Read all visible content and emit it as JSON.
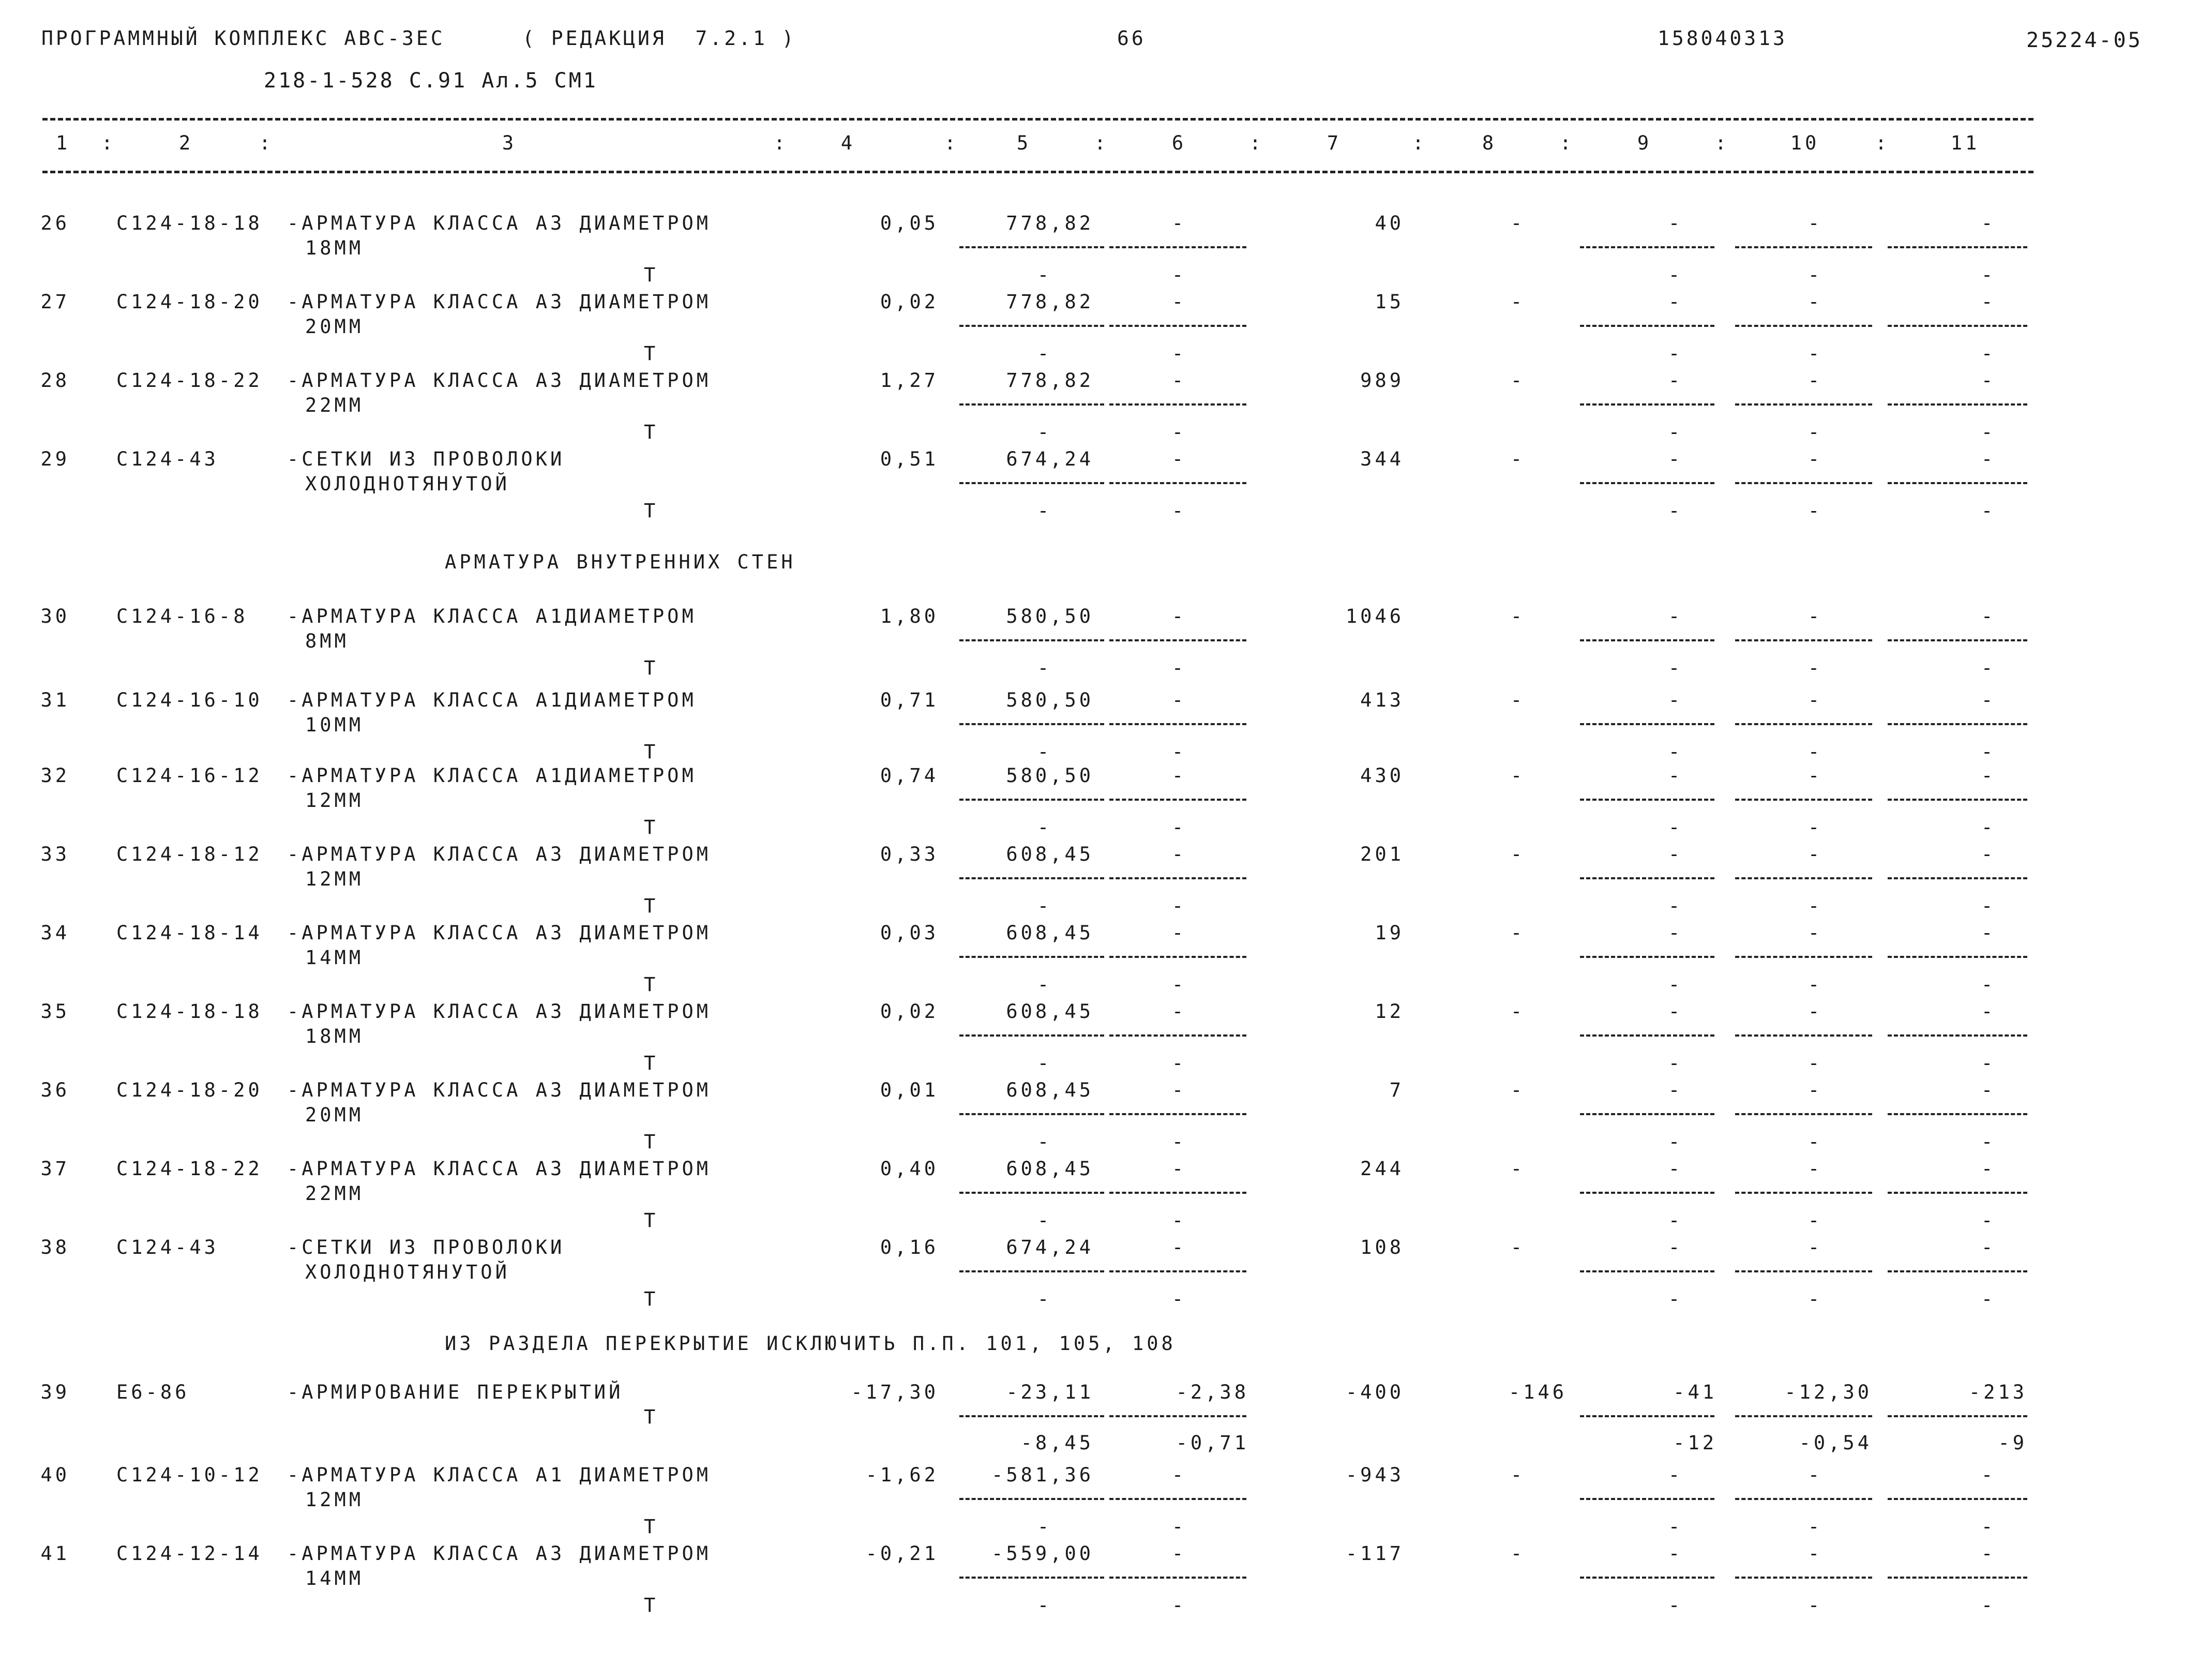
{
  "header": {
    "program": "ПРОГРАММНЫЙ КОМПЛЕКС АВС-3ЕС",
    "edition": "( РЕДАКЦИЯ  7.2.1 )",
    "page": "66",
    "number": "158040313",
    "sheet_code": "25224-05",
    "subtitle": "218-1-528 С.91 Ал.5 СМ1"
  },
  "columns": [
    "1",
    "2",
    "3",
    "4",
    "5",
    "6",
    "7",
    "8",
    "9",
    "10",
    "11"
  ],
  "col_separator": ":",
  "unit_mark": "T",
  "dash": "-",
  "sections": {
    "inner_walls": "АРМАТУРА ВНУТРЕННИХ СТЕН",
    "exclude": "ИЗ РАЗДЕЛА ПЕРЕКРЫТИЕ ИСКЛЮЧИТЬ П.П. 101, 105, 108"
  },
  "rows": [
    {
      "n": "26",
      "code": "С124-18-18",
      "name1": "-АРМАТУРА КЛАССА А3 ДИАМЕТРОМ",
      "name2": "18ММ",
      "c4": "0,05",
      "c5": "778,82",
      "c6": "-",
      "c7": "40",
      "c8": "-",
      "c9": "-",
      "c10": "-",
      "c11": "-"
    },
    {
      "n": "27",
      "code": "С124-18-20",
      "name1": "-АРМАТУРА КЛАССА А3 ДИАМЕТРОМ",
      "name2": "20ММ",
      "c4": "0,02",
      "c5": "778,82",
      "c6": "-",
      "c7": "15",
      "c8": "-",
      "c9": "-",
      "c10": "-",
      "c11": "-"
    },
    {
      "n": "28",
      "code": "С124-18-22",
      "name1": "-АРМАТУРА КЛАССА А3 ДИАМЕТРОМ",
      "name2": "22ММ",
      "c4": "1,27",
      "c5": "778,82",
      "c6": "-",
      "c7": "989",
      "c8": "-",
      "c9": "-",
      "c10": "-",
      "c11": "-"
    },
    {
      "n": "29",
      "code": "С124-43",
      "name1": "-СЕТКИ ИЗ ПРОВОЛОКИ",
      "name2": "ХОЛОДНОТЯНУТОЙ",
      "c4": "0,51",
      "c5": "674,24",
      "c6": "-",
      "c7": "344",
      "c8": "-",
      "c9": "-",
      "c10": "-",
      "c11": "-"
    },
    {
      "n": "30",
      "code": "С124-16-8",
      "name1": "-АРМАТУРА КЛАССА А1ДИАМЕТРОМ",
      "name2": "8ММ",
      "c4": "1,80",
      "c5": "580,50",
      "c6": "-",
      "c7": "1046",
      "c8": "-",
      "c9": "-",
      "c10": "-",
      "c11": "-"
    },
    {
      "n": "31",
      "code": "С124-16-10",
      "name1": "-АРМАТУРА КЛАССА А1ДИАМЕТРОМ",
      "name2": "10ММ",
      "c4": "0,71",
      "c5": "580,50",
      "c6": "-",
      "c7": "413",
      "c8": "-",
      "c9": "-",
      "c10": "-",
      "c11": "-"
    },
    {
      "n": "32",
      "code": "С124-16-12",
      "name1": "-АРМАТУРА КЛАССА А1ДИАМЕТРОМ",
      "name2": "12ММ",
      "c4": "0,74",
      "c5": "580,50",
      "c6": "-",
      "c7": "430",
      "c8": "-",
      "c9": "-",
      "c10": "-",
      "c11": "-"
    },
    {
      "n": "33",
      "code": "С124-18-12",
      "name1": "-АРМАТУРА КЛАССА А3 ДИАМЕТРОМ",
      "name2": "12ММ",
      "c4": "0,33",
      "c5": "608,45",
      "c6": "-",
      "c7": "201",
      "c8": "-",
      "c9": "-",
      "c10": "-",
      "c11": "-"
    },
    {
      "n": "34",
      "code": "С124-18-14",
      "name1": "-АРМАТУРА КЛАССА А3 ДИАМЕТРОМ",
      "name2": "14ММ",
      "c4": "0,03",
      "c5": "608,45",
      "c6": "-",
      "c7": "19",
      "c8": "-",
      "c9": "-",
      "c10": "-",
      "c11": "-"
    },
    {
      "n": "35",
      "code": "С124-18-18",
      "name1": "-АРМАТУРА КЛАССА А3 ДИАМЕТРОМ",
      "name2": "18ММ",
      "c4": "0,02",
      "c5": "608,45",
      "c6": "-",
      "c7": "12",
      "c8": "-",
      "c9": "-",
      "c10": "-",
      "c11": "-"
    },
    {
      "n": "36",
      "code": "С124-18-20",
      "name1": "-АРМАТУРА КЛАССА А3 ДИАМЕТРОМ",
      "name2": "20ММ",
      "c4": "0,01",
      "c5": "608,45",
      "c6": "-",
      "c7": "7",
      "c8": "-",
      "c9": "-",
      "c10": "-",
      "c11": "-"
    },
    {
      "n": "37",
      "code": "С124-18-22",
      "name1": "-АРМАТУРА КЛАССА А3 ДИАМЕТРОМ",
      "name2": "22ММ",
      "c4": "0,40",
      "c5": "608,45",
      "c6": "-",
      "c7": "244",
      "c8": "-",
      "c9": "-",
      "c10": "-",
      "c11": "-"
    },
    {
      "n": "38",
      "code": "С124-43",
      "name1": "-СЕТКИ ИЗ ПРОВОЛОКИ",
      "name2": "ХОЛОДНОТЯНУТОЙ",
      "c4": "0,16",
      "c5": "674,24",
      "c6": "-",
      "c7": "108",
      "c8": "-",
      "c9": "-",
      "c10": "-",
      "c11": "-"
    },
    {
      "n": "39",
      "code": "Е6-86",
      "name1": "-АРМИРОВАНИЕ ПЕРЕКРЫТИЙ",
      "name2": "",
      "c4": "-17,30",
      "c5": "-23,11",
      "c6": "-2,38",
      "c7": "-400",
      "c8": "-146",
      "c9": "-41",
      "c10": "-12,30",
      "c11": "-213",
      "s5": "-8,45",
      "s6": "-0,71",
      "s9": "-12",
      "s10": "-0,54",
      "s11": "-9"
    },
    {
      "n": "40",
      "code": "С124-10-12",
      "name1": "-АРМАТУРА КЛАССА А1 ДИАМЕТРОМ",
      "name2": "12ММ",
      "c4": "-1,62",
      "c5": "-581,36",
      "c6": "-",
      "c7": "-943",
      "c8": "-",
      "c9": "-",
      "c10": "-",
      "c11": "-"
    },
    {
      "n": "41",
      "code": "С124-12-14",
      "name1": "-АРМАТУРА КЛАССА А3 ДИАМЕТРОМ",
      "name2": "14ММ",
      "c4": "-0,21",
      "c5": "-559,00",
      "c6": "-",
      "c7": "-117",
      "c8": "-",
      "c9": "-",
      "c10": "-",
      "c11": "-"
    }
  ]
}
